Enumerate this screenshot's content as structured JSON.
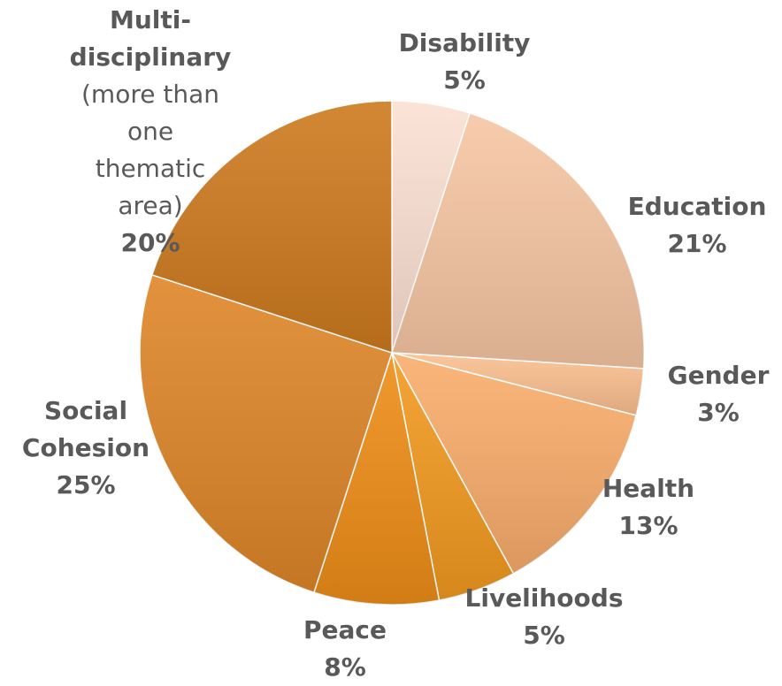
{
  "chart_data": {
    "type": "pie",
    "start_angle_deg": 0,
    "direction": "clockwise",
    "slices": [
      {
        "name": "Disability",
        "value": 5,
        "label": "5%",
        "color": "#fbe0d2"
      },
      {
        "name": "Education",
        "value": 21,
        "label": "21%",
        "color": "#f6c6a3"
      },
      {
        "name": "Gender",
        "value": 3,
        "label": "3%",
        "color": "#fbbf8f"
      },
      {
        "name": "Health",
        "value": 13,
        "label": "13%",
        "color": "#f9ad6b"
      },
      {
        "name": "Livelihoods",
        "value": 5,
        "label": "5%",
        "color": "#f39a1f"
      },
      {
        "name": "Peace",
        "value": 8,
        "label": "8%",
        "color": "#ee8d17"
      },
      {
        "name": "Social Cohesion",
        "name_lines": [
          "Social",
          "Cohesion"
        ],
        "value": 25,
        "label": "25%",
        "color": "#df8628"
      },
      {
        "name": "Multi-disciplinary",
        "name_lines": [
          "Multi-",
          "disciplinary"
        ],
        "note_lines": [
          "(more than",
          "one",
          "thematic",
          "area)"
        ],
        "value": 20,
        "label": "20%",
        "color": "#cd7a1e"
      }
    ],
    "legend": "none",
    "data_labels": "outside"
  }
}
